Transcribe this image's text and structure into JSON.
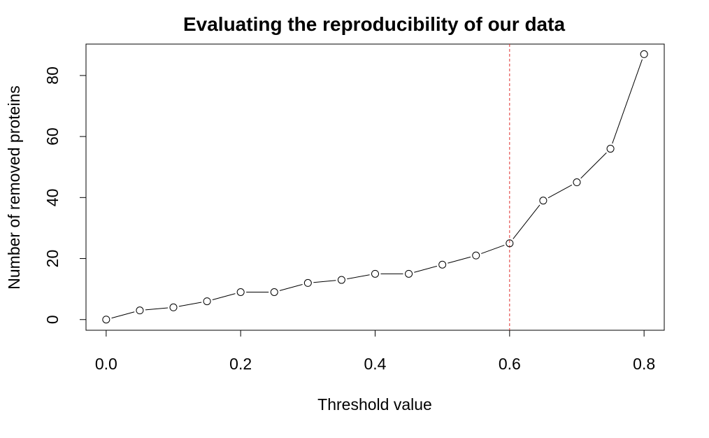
{
  "chart_data": {
    "type": "line",
    "title": "Evaluating the reproducibility of our data",
    "xlabel": "Threshold value",
    "ylabel": "Number of removed proteins",
    "xlim": [
      -0.03,
      0.83
    ],
    "ylim": [
      -3.5,
      90.3
    ],
    "x_ticks": [
      "0.0",
      "0.2",
      "0.4",
      "0.6",
      "0.8"
    ],
    "y_ticks": [
      "0",
      "20",
      "40",
      "60",
      "80"
    ],
    "grid": false,
    "legend": "none",
    "colors": {
      "line": "#000000",
      "marker": "#000000",
      "reference_line": "#e0302f"
    },
    "series": [
      {
        "x": [
          0.0,
          0.05,
          0.1,
          0.15,
          0.2,
          0.25,
          0.3,
          0.35,
          0.4,
          0.45,
          0.5,
          0.55,
          0.6,
          0.65,
          0.7,
          0.75,
          0.8
        ],
        "y": [
          0,
          3,
          4,
          6,
          9,
          9,
          12,
          13,
          15,
          15,
          18,
          21,
          25,
          39,
          45,
          56,
          87
        ]
      }
    ],
    "reference_line": {
      "orientation": "vertical",
      "x": 0.6,
      "style": "dashed"
    }
  }
}
